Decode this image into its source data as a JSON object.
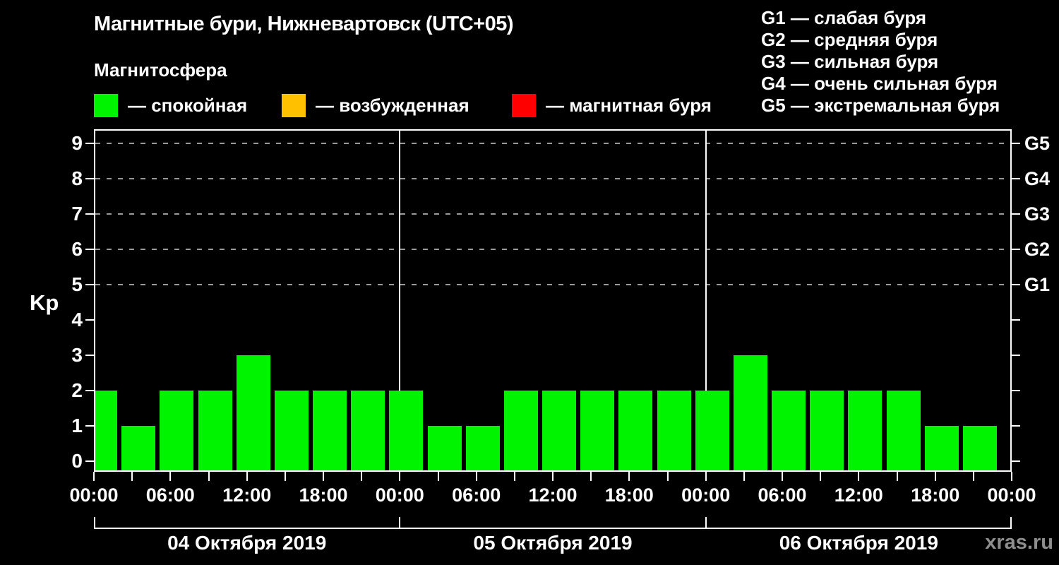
{
  "header": {
    "title": "Магнитные бури, Нижневартовск (UTC+05)",
    "subtitle": "Магнитосфера",
    "watermark": "xras.ru"
  },
  "em_dash": "—",
  "legend": {
    "items": [
      {
        "name": "quiet",
        "label": "— спокойная",
        "color": "#00f400"
      },
      {
        "name": "excited",
        "label": "— возбужденная",
        "color": "#ffc000"
      },
      {
        "name": "storm",
        "label": "— магнитная буря",
        "color": "#ff0000"
      }
    ]
  },
  "storm_scale": [
    {
      "code": "G1",
      "label": "слабая буря"
    },
    {
      "code": "G2",
      "label": "средняя буря"
    },
    {
      "code": "G3",
      "label": "сильная буря"
    },
    {
      "code": "G4",
      "label": "очень сильная буря"
    },
    {
      "code": "G5",
      "label": "экстремальная буря"
    }
  ],
  "chart_data": {
    "type": "bar",
    "title": "Магнитные бури, Нижневартовск (UTC+05)",
    "ylabel": "Kp",
    "ylim": [
      0,
      9
    ],
    "yticks": [
      0,
      1,
      2,
      3,
      4,
      5,
      6,
      7,
      8,
      9
    ],
    "dashed_gridlines_at": [
      5,
      6,
      7,
      8,
      9
    ],
    "right_axis": [
      {
        "kp": 5,
        "label": "G1"
      },
      {
        "kp": 6,
        "label": "G2"
      },
      {
        "kp": 7,
        "label": "G3"
      },
      {
        "kp": 8,
        "label": "G4"
      },
      {
        "kp": 9,
        "label": "G5"
      }
    ],
    "interval_hours": 3,
    "total_hours": 72,
    "xtick_step_hours": 3,
    "xtick_labels": [
      "00:00",
      "06:00",
      "12:00",
      "18:00",
      "00:00",
      "06:00",
      "12:00",
      "18:00",
      "00:00",
      "06:00",
      "12:00",
      "18:00",
      "00:00"
    ],
    "xtick_label_step_hours": 6,
    "days": [
      {
        "date": "04 Октября 2019",
        "values": [
          2,
          1,
          2,
          2,
          3,
          2,
          2,
          2
        ]
      },
      {
        "date": "05 Октября 2019",
        "values": [
          2,
          1,
          1,
          2,
          2,
          2,
          2,
          2
        ]
      },
      {
        "date": "06 Октября 2019",
        "values": [
          2,
          3,
          2,
          2,
          2,
          2,
          1,
          1
        ]
      }
    ],
    "bar_color": "#00f400",
    "colors": {
      "axis": "#ffffff",
      "grid": "#999999",
      "background": "#000000"
    }
  }
}
